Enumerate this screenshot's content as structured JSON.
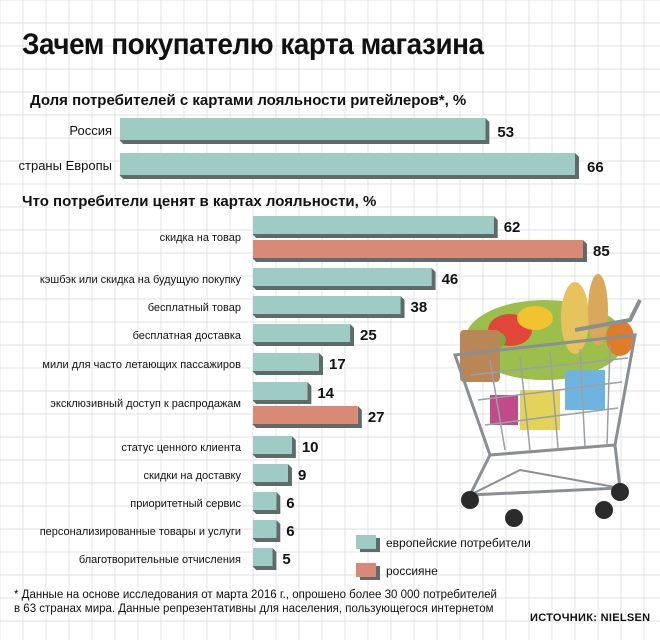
{
  "title": "Зачем покупателю карта магазина",
  "footnote_line1": "* Данные на основе исследования от марта 2016 г., опрошено более 30 000 потребителей",
  "footnote_line2": "в 63 странах мира. Данные репрезентативны для населения, пользующегося интернетом",
  "source": "ИСТОЧНИК: NIELSEN",
  "colors": {
    "europe": "#9ecbc4",
    "russia": "#d98a76",
    "bar_shadow": "#5f6a6a",
    "grid": "#d8d8d8"
  },
  "illustration": "shopping-cart-with-groceries",
  "chart_data": [
    {
      "type": "bar",
      "orientation": "horizontal",
      "title": "Доля потребителей с картами лояльности ритейлеров*, %",
      "categories": [
        "Россия",
        "страны Европы"
      ],
      "series": [
        {
          "values": [
            53,
            66
          ]
        }
      ]
    },
    {
      "type": "bar",
      "orientation": "horizontal",
      "title": "Что потребители ценят в картах лояльности, %",
      "categories": [
        "скидка на товар",
        "кэшбэк или скидка на будущую покупку",
        "бесплатный товар",
        "бесплатная доставка",
        "мили для часто летающих пассажиров",
        "эксклюзивный доступ к распродажам",
        "статус ценного клиента",
        "скидки на доставку",
        "приоритетный сервис",
        "персонализированные товары и услуги",
        "благотворительные отчисления"
      ],
      "series": [
        {
          "name": "европейские потребители",
          "values": [
            62,
            46,
            38,
            25,
            17,
            14,
            10,
            9,
            6,
            6,
            5
          ]
        },
        {
          "name": "россияне",
          "values": [
            85,
            null,
            null,
            null,
            null,
            27,
            null,
            null,
            null,
            null,
            null
          ]
        }
      ],
      "legend": "bottom-center"
    }
  ]
}
